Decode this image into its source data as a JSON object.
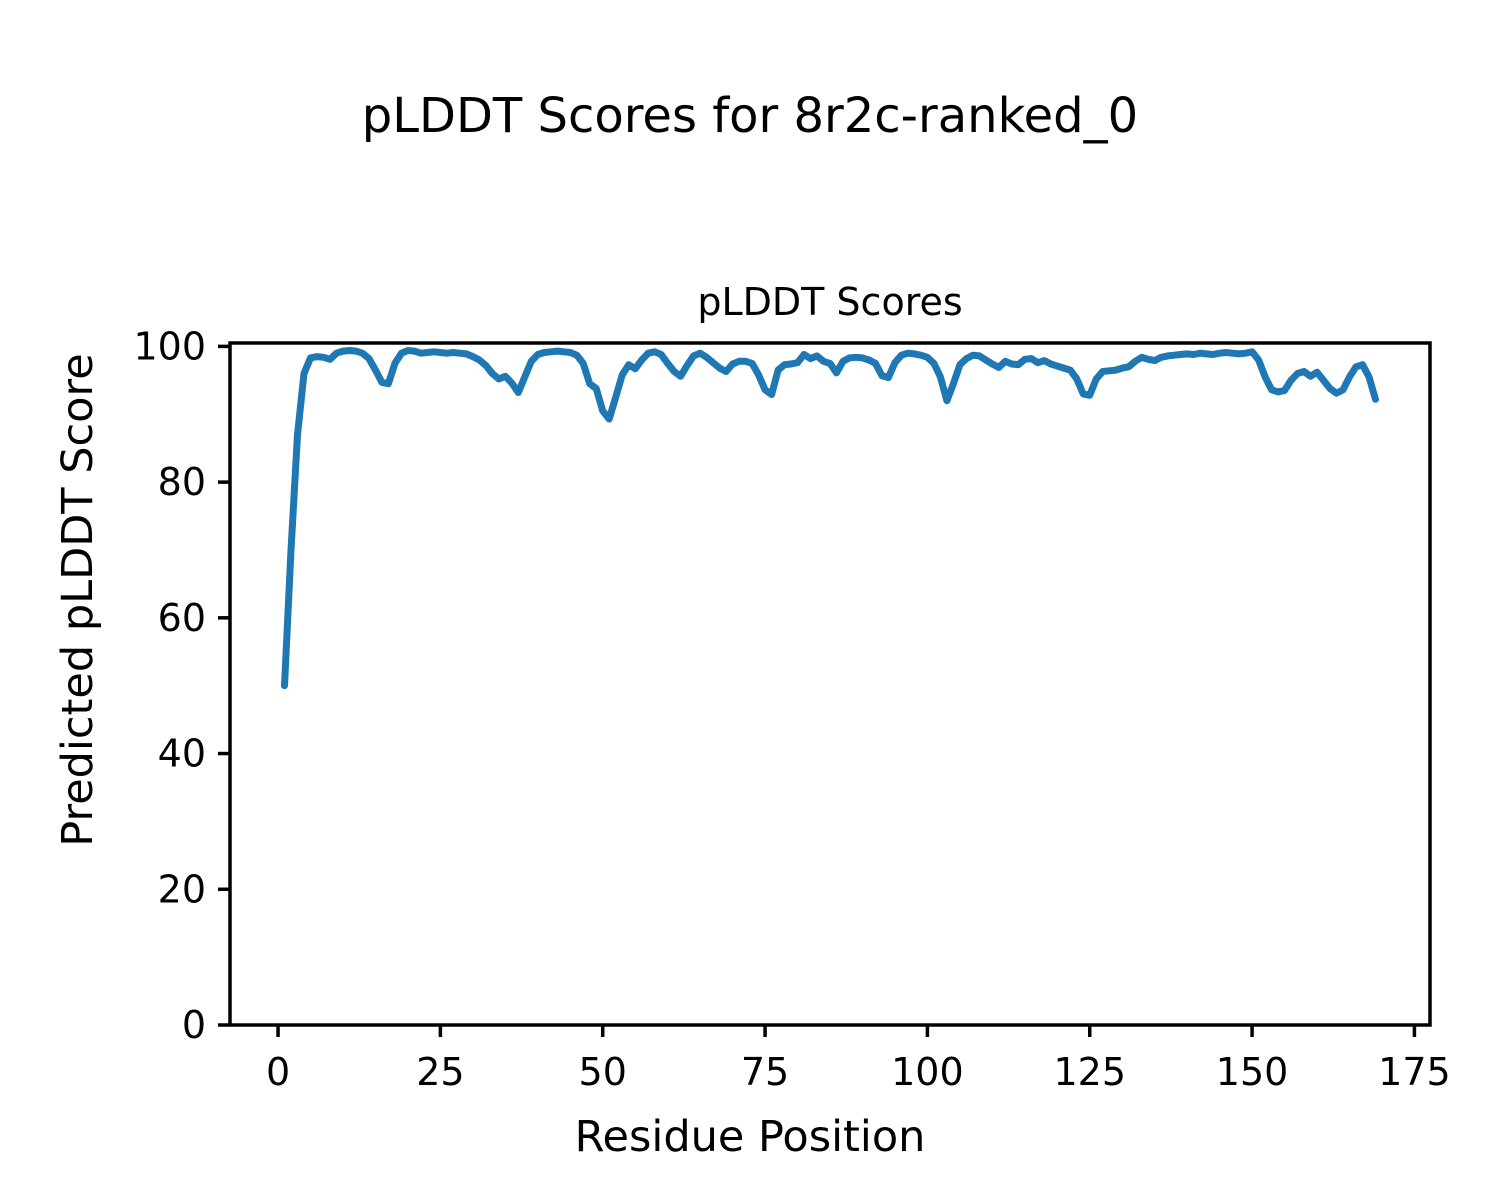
{
  "figure": {
    "suptitle": "pLDDT Scores for 8r2c-ranked_0",
    "background_color": "#ffffff",
    "text_color": "#000000"
  },
  "chart_data": {
    "type": "line",
    "title": "pLDDT Scores",
    "xlabel": "Residue Position",
    "ylabel": "Predicted pLDDT Score",
    "line_color": "#1f77b4",
    "spine_color": "#000000",
    "grid": false,
    "legend_position": "none",
    "xlim": [
      -7.4,
      177.4
    ],
    "ylim": [
      0,
      100.5
    ],
    "xticks": [
      0,
      25,
      50,
      75,
      100,
      125,
      150,
      175
    ],
    "yticks": [
      0,
      20,
      40,
      60,
      80,
      100
    ],
    "x_start": 1,
    "x_step": 1,
    "values": [
      50.0,
      70.0,
      87.0,
      96.0,
      98.3,
      98.5,
      98.4,
      98.1,
      99.0,
      99.3,
      99.4,
      99.3,
      99.0,
      98.2,
      96.5,
      94.7,
      94.5,
      97.5,
      99.0,
      99.4,
      99.3,
      99.0,
      99.1,
      99.2,
      99.1,
      99.0,
      99.1,
      99.0,
      98.9,
      98.5,
      98.0,
      97.2,
      96.0,
      95.2,
      95.6,
      94.6,
      93.2,
      95.5,
      97.8,
      98.8,
      99.1,
      99.2,
      99.3,
      99.2,
      99.1,
      98.7,
      97.5,
      94.5,
      93.8,
      90.5,
      89.3,
      92.5,
      95.8,
      97.3,
      96.7,
      98.0,
      99.0,
      99.2,
      98.8,
      97.5,
      96.3,
      95.6,
      97.2,
      98.6,
      99.0,
      98.4,
      97.6,
      96.8,
      96.3,
      97.4,
      97.8,
      97.8,
      97.5,
      95.8,
      93.6,
      92.9,
      96.5,
      97.3,
      97.4,
      97.6,
      98.8,
      98.2,
      98.6,
      97.8,
      97.5,
      96.1,
      97.8,
      98.3,
      98.4,
      98.3,
      98.0,
      97.5,
      95.7,
      95.4,
      97.6,
      98.7,
      99.0,
      98.9,
      98.7,
      98.4,
      97.5,
      95.5,
      92.0,
      94.5,
      97.3,
      98.2,
      98.7,
      98.6,
      98.0,
      97.4,
      96.9,
      97.8,
      97.4,
      97.3,
      98.1,
      98.2,
      97.6,
      97.9,
      97.4,
      97.1,
      96.8,
      96.5,
      95.2,
      93.0,
      92.8,
      95.2,
      96.3,
      96.4,
      96.5,
      96.8,
      97.0,
      97.8,
      98.4,
      98.1,
      97.9,
      98.4,
      98.6,
      98.7,
      98.8,
      98.9,
      98.8,
      99.0,
      98.9,
      98.8,
      99.0,
      99.1,
      99.0,
      98.9,
      99.0,
      99.2,
      98.0,
      95.5,
      93.6,
      93.3,
      93.5,
      95.0,
      96.0,
      96.3,
      95.6,
      96.2,
      95.0,
      93.8,
      93.1,
      93.6,
      95.5,
      97.0,
      97.3,
      95.5,
      92.2
    ]
  }
}
